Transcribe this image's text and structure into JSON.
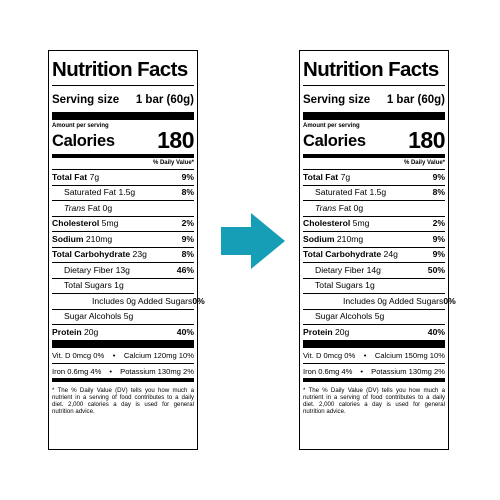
{
  "arrow": {
    "color": "#179eb7"
  },
  "labels": [
    {
      "title": "Nutrition Facts",
      "serving_label": "Serving size",
      "serving_value": "1 bar (60g)",
      "amount_per_serving": "Amount per serving",
      "calories_label": "Calories",
      "calories_value": "180",
      "dv_header": "% Daily Value*",
      "total_fat": {
        "label": "Total Fat",
        "amount": "7g",
        "dv": "9%"
      },
      "saturated_fat": {
        "label": "Saturated Fat",
        "amount": "1.5g",
        "dv": "8%"
      },
      "trans_fat": {
        "label_italic": "Trans",
        "label": "Fat",
        "amount": "0g"
      },
      "cholesterol": {
        "label": "Cholesterol",
        "amount": "5mg",
        "dv": "2%"
      },
      "sodium": {
        "label": "Sodium",
        "amount": "210mg",
        "dv": "9%"
      },
      "total_carb": {
        "label": "Total Carbohydrate",
        "amount": "23g",
        "dv": "8%"
      },
      "dietary_fiber": {
        "label": "Dietary Fiber",
        "amount": "13g",
        "dv": "46%"
      },
      "total_sugars": {
        "label": "Total Sugars",
        "amount": "1g"
      },
      "added_sugars": {
        "label": "Includes 0g Added Sugars",
        "dv": "0%"
      },
      "sugar_alcohols": {
        "label": "Sugar Alcohols",
        "amount": "5g"
      },
      "protein": {
        "label": "Protein",
        "amount": "20g",
        "dv": "40%"
      },
      "vitamins_row1": {
        "left": "Vit. D 0mcg 0%",
        "sep": "•",
        "right": "Calcium 120mg 10%"
      },
      "vitamins_row2": {
        "left": "Iron 0.6mg 4%",
        "sep": "•",
        "right": "Potassium 130mg 2%"
      },
      "footnote": "* The % Daily Value (DV) tells you how much a nutrient in a serving of food contributes to a daily diet. 2,000 calories a day is used for general nutrition advice."
    },
    {
      "title": "Nutrition Facts",
      "serving_label": "Serving size",
      "serving_value": "1 bar (60g)",
      "amount_per_serving": "Amount per serving",
      "calories_label": "Calories",
      "calories_value": "180",
      "dv_header": "% Daily Value*",
      "total_fat": {
        "label": "Total Fat",
        "amount": "7g",
        "dv": "9%"
      },
      "saturated_fat": {
        "label": "Saturated Fat",
        "amount": "1.5g",
        "dv": "8%"
      },
      "trans_fat": {
        "label_italic": "Trans",
        "label": "Fat",
        "amount": "0g"
      },
      "cholesterol": {
        "label": "Cholesterol",
        "amount": "5mg",
        "dv": "2%"
      },
      "sodium": {
        "label": "Sodium",
        "amount": "210mg",
        "dv": "9%"
      },
      "total_carb": {
        "label": "Total Carbohydrate",
        "amount": "24g",
        "dv": "9%"
      },
      "dietary_fiber": {
        "label": "Dietary Fiber",
        "amount": "14g",
        "dv": "50%"
      },
      "total_sugars": {
        "label": "Total Sugars",
        "amount": "1g"
      },
      "added_sugars": {
        "label": "Includes 0g Added Sugars",
        "dv": "0%"
      },
      "sugar_alcohols": {
        "label": "Sugar Alcohols",
        "amount": "5g"
      },
      "protein": {
        "label": "Protein",
        "amount": "20g",
        "dv": "40%"
      },
      "vitamins_row1": {
        "left": "Vit. D 0mcg 0%",
        "sep": "•",
        "right": "Calcium 150mg 10%"
      },
      "vitamins_row2": {
        "left": "Iron 0.6mg 4%",
        "sep": "•",
        "right": "Potassium 130mg 2%"
      },
      "footnote": "* The % Daily Value (DV) tells you how much a nutrient in a serving of food contributes to a daily diet. 2,000 calories a day is used for general nutrition advice."
    }
  ]
}
